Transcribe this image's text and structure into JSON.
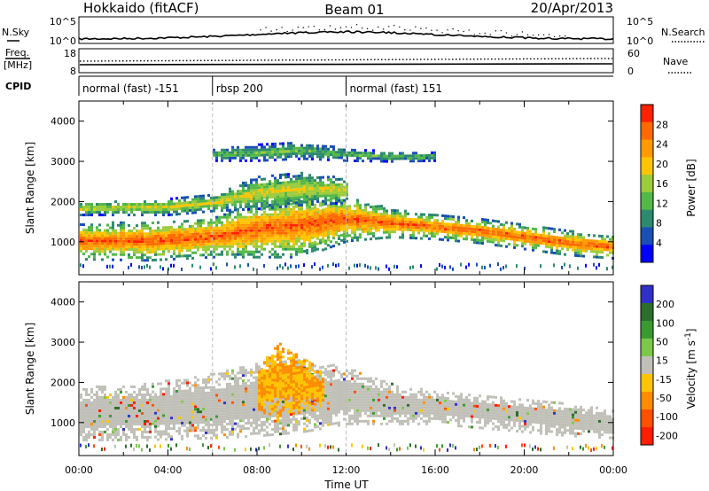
{
  "header": {
    "station": "Hokkaido (fitACF)",
    "beam": "Beam 01",
    "date": "20/Apr/2013"
  },
  "noise_panel": {
    "left_label": "N.Sky",
    "right_label": "N.Search",
    "left_ticks": [
      "10^5",
      "10^0"
    ],
    "right_ticks": [
      "10^5",
      "10^0"
    ]
  },
  "freq_panel": {
    "left_label_1": "Freq.",
    "left_label_2": "[MHz]",
    "right_label": "Nave",
    "left_ticks": [
      "18",
      "8"
    ],
    "right_ticks": [
      "60",
      "0"
    ]
  },
  "cpid": {
    "label": "CPID",
    "segments": [
      {
        "name": "normal (fast) -151",
        "start_h": 0,
        "end_h": 6
      },
      {
        "name": "rbsp 200",
        "start_h": 6,
        "end_h": 12
      },
      {
        "name": "normal (fast) 151",
        "start_h": 12,
        "end_h": 24
      }
    ]
  },
  "colors": {
    "power_scale": [
      "#0000ff",
      "#1a4fb4",
      "#2d8a6e",
      "#52b848",
      "#9ccb3c",
      "#ffc400",
      "#ff9a00",
      "#ff6a00",
      "#ff2200"
    ],
    "velocity_scale": [
      "#3030c8",
      "#2c6e2c",
      "#3a9a30",
      "#7cc84a",
      "#c0c0b8",
      "#ffc400",
      "#ff8c00",
      "#ff5000",
      "#ff1e00"
    ],
    "gray_scatter": "#c0c0b8"
  },
  "chart_data": [
    {
      "type": "heatmap",
      "title": "Power",
      "ylabel": "Slant Range [km]",
      "xlabel": "",
      "colorbar_label": "Power [dB]",
      "colorbar_ticks": [
        "28",
        "24",
        "20",
        "16",
        "12",
        "8",
        "4"
      ],
      "ylim": [
        180,
        4500
      ],
      "yticks": [
        1000,
        2000,
        3000,
        4000
      ],
      "xlim": [
        0,
        24
      ],
      "xtick_labels": [
        "00:00",
        "04:00",
        "08:00",
        "12:00",
        "16:00",
        "20:00",
        "00:00"
      ],
      "bands": [
        {
          "desc": "main F echo",
          "t": [
            0,
            3,
            6,
            8,
            10,
            12,
            14,
            16,
            18,
            20,
            22,
            24
          ],
          "center": [
            1050,
            1050,
            1150,
            1350,
            1450,
            1600,
            1500,
            1400,
            1300,
            1150,
            1000,
            900
          ],
          "width": [
            450,
            480,
            500,
            700,
            800,
            550,
            350,
            300,
            300,
            300,
            300,
            280
          ],
          "value_db": 28
        },
        {
          "desc": "upper layer",
          "t": [
            0,
            4,
            6,
            8,
            10,
            12
          ],
          "center": [
            1850,
            1900,
            2000,
            2250,
            2350,
            2300
          ],
          "width": [
            150,
            200,
            200,
            400,
            400,
            300
          ],
          "value_db": 18
        },
        {
          "desc": "far echo",
          "t": [
            6,
            8,
            10,
            12,
            14,
            16
          ],
          "center": [
            3200,
            3250,
            3300,
            3200,
            3150,
            3150
          ],
          "width": [
            150,
            200,
            200,
            150,
            120,
            100
          ],
          "value_db": 12
        }
      ]
    },
    {
      "type": "heatmap",
      "title": "Velocity",
      "ylabel": "Slant Range [km]",
      "xlabel": "Time UT",
      "colorbar_label": "Velocity [m s^-1]",
      "colorbar_ticks": [
        "200",
        "100",
        "50",
        "15",
        "-15",
        "-50",
        "-100",
        "-200"
      ],
      "ylim": [
        180,
        4500
      ],
      "yticks": [
        1000,
        2000,
        3000,
        4000
      ],
      "xlim": [
        0,
        24
      ],
      "xtick_labels": [
        "00:00",
        "04:00",
        "08:00",
        "12:00",
        "16:00",
        "20:00",
        "00:00"
      ],
      "bands": [
        {
          "desc": "ground scatter",
          "t": [
            0,
            3,
            6,
            8,
            10,
            12,
            14,
            16,
            18,
            20,
            22,
            24
          ],
          "center": [
            1250,
            1300,
            1450,
            1600,
            1700,
            1700,
            1500,
            1400,
            1300,
            1200,
            1100,
            1000
          ],
          "width": [
            650,
            700,
            800,
            900,
            900,
            700,
            500,
            400,
            400,
            400,
            400,
            350
          ],
          "value_ms": 0
        },
        {
          "desc": "negative velocity patch",
          "t": [
            8,
            9,
            10,
            11
          ],
          "center": [
            1900,
            2100,
            2000,
            1800
          ],
          "width": [
            600,
            900,
            700,
            400
          ],
          "value_ms": -60
        }
      ]
    }
  ]
}
